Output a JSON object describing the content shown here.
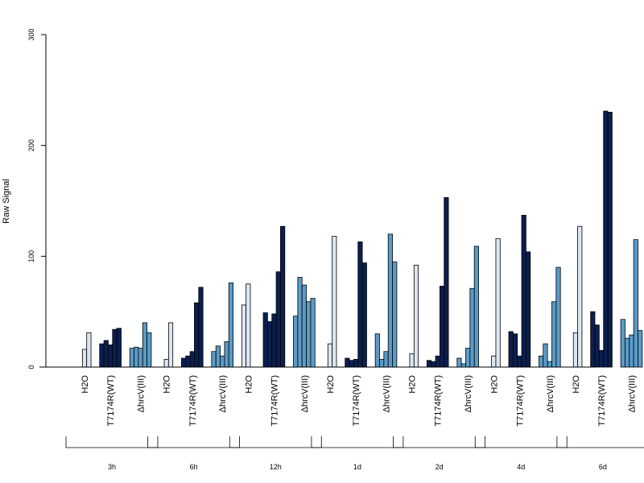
{
  "chart_data": {
    "type": "bar",
    "ylabel": "Raw Signal",
    "ylim": [
      0,
      300
    ],
    "y_ticks": [
      "0",
      "100",
      "200",
      "300"
    ],
    "y_tick_values": [
      0,
      100,
      200,
      300
    ],
    "colors": {
      "H2O": "#dce6f2",
      "T7174R(WT)": "#0b1f4f",
      "ΔhrcV(III)": "#5b9bc8"
    },
    "timepoints": [
      {
        "label": "3h",
        "groups": [
          {
            "treatment": "H2O",
            "label": "H2O",
            "values": [
              0,
              16,
              31
            ]
          },
          {
            "treatment": "T7174R(WT)",
            "label": "T7174R(WT)",
            "values": [
              21,
              24,
              20,
              34,
              35
            ]
          },
          {
            "treatment": "ΔhrcV(III)",
            "label": "ΔhrcV(III)",
            "values": [
              17,
              18,
              17,
              40,
              31
            ]
          }
        ]
      },
      {
        "label": "6h",
        "groups": [
          {
            "treatment": "H2O",
            "label": "H2O",
            "values": [
              0,
              7,
              40
            ]
          },
          {
            "treatment": "T7174R(WT)",
            "label": "T7174R(WT)",
            "values": [
              8,
              10,
              14,
              58,
              72
            ]
          },
          {
            "treatment": "ΔhrcV(III)",
            "label": "ΔhrcV(III)",
            "values": [
              14,
              19,
              10,
              23,
              76
            ]
          }
        ]
      },
      {
        "label": "12h",
        "groups": [
          {
            "treatment": "H2O",
            "label": "H2O",
            "values": [
              56,
              75,
              0
            ]
          },
          {
            "treatment": "T7174R(WT)",
            "label": "T7174R(WT)",
            "values": [
              49,
              41,
              48,
              86,
              127
            ]
          },
          {
            "treatment": "ΔhrcV(III)",
            "label": "ΔhrcV(III)",
            "values": [
              46,
              81,
              74,
              59,
              62
            ]
          }
        ]
      },
      {
        "label": "1d",
        "groups": [
          {
            "treatment": "H2O",
            "label": "H2O",
            "values": [
              0,
              21,
              118
            ]
          },
          {
            "treatment": "T7174R(WT)",
            "label": "T7174R(WT)",
            "values": [
              8,
              6,
              7,
              113,
              94
            ]
          },
          {
            "treatment": "ΔhrcV(III)",
            "label": "ΔhrcV(III)",
            "values": [
              30,
              7,
              14,
              120,
              95
            ]
          }
        ]
      },
      {
        "label": "2d",
        "groups": [
          {
            "treatment": "H2O",
            "label": "H2O",
            "values": [
              0,
              12,
              92
            ]
          },
          {
            "treatment": "T7174R(WT)",
            "label": "T7174R(WT)",
            "values": [
              6,
              5,
              10,
              73,
              153
            ]
          },
          {
            "treatment": "ΔhrcV(III)",
            "label": "ΔhrcV(III)",
            "values": [
              8,
              3,
              17,
              71,
              109
            ]
          }
        ]
      },
      {
        "label": "4d",
        "groups": [
          {
            "treatment": "H2O",
            "label": "H2O",
            "values": [
              0,
              10,
              116
            ]
          },
          {
            "treatment": "T7174R(WT)",
            "label": "T7174R(WT)",
            "values": [
              32,
              30,
              10,
              137,
              104
            ]
          },
          {
            "treatment": "ΔhrcV(III)",
            "label": "ΔhrcV(III)",
            "values": [
              10,
              21,
              5,
              59,
              90
            ]
          }
        ]
      },
      {
        "label": "6d",
        "groups": [
          {
            "treatment": "H2O",
            "label": "H2O",
            "values": [
              0,
              31,
              127
            ]
          },
          {
            "treatment": "T7174R(WT)",
            "label": "T7174R(WT)",
            "values": [
              50,
              38,
              15,
              231,
              230
            ]
          },
          {
            "treatment": "ΔhrcV(III)",
            "label": "ΔhrcV(III)",
            "values": [
              43,
              26,
              29,
              115,
              33
            ]
          }
        ]
      }
    ]
  }
}
